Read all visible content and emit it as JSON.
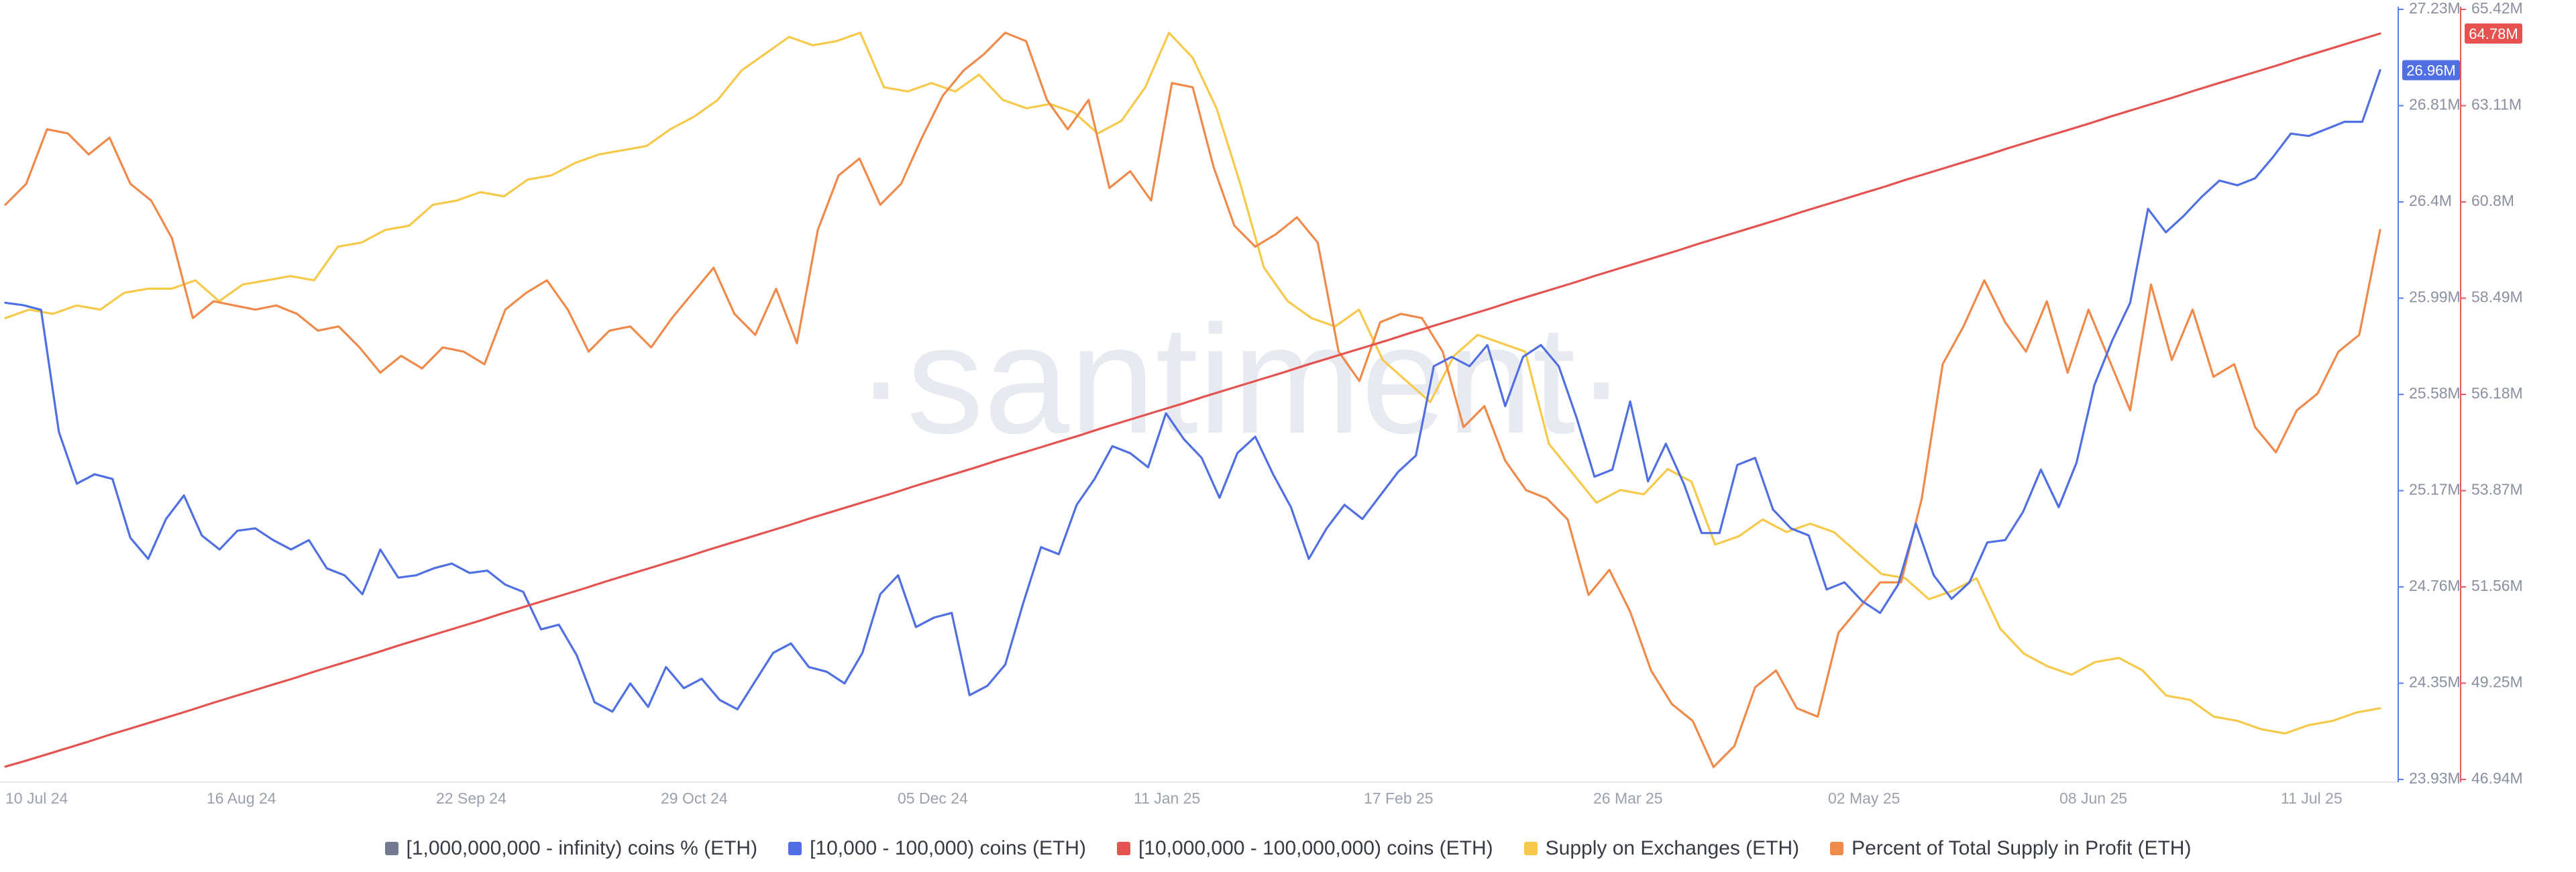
{
  "watermark": "·santiment·",
  "chart_data": {
    "type": "line",
    "x_ticks": [
      "10 Jul 24",
      "16 Aug 24",
      "22 Sep 24",
      "29 Oct 24",
      "05 Dec 24",
      "11 Jan 25",
      "17 Feb 25",
      "26 Mar 25",
      "02 May 25",
      "08 Jun 25",
      "11 Jul 25"
    ],
    "axes": {
      "left": {
        "ticks": [
          "27.23M",
          "26.81M",
          "26.4M",
          "25.99M",
          "25.58M",
          "25.17M",
          "24.76M",
          "24.35M",
          "23.93M"
        ],
        "range": [
          23.93,
          27.23
        ],
        "color": "#5b7fe6",
        "current_label": "26.96M",
        "current_value": 26.96,
        "current_label_color": "#4f6fe3"
      },
      "right": {
        "ticks": [
          "65.42M",
          "63.11M",
          "60.8M",
          "58.49M",
          "56.18M",
          "53.87M",
          "51.56M",
          "49.25M",
          "46.94M"
        ],
        "range": [
          46.94,
          65.42
        ],
        "color": "#e45a57",
        "current_label": "64.78M",
        "current_value": 64.78,
        "current_label_color": "#e5524f"
      }
    },
    "series": [
      {
        "name": "[1,000,000,000 - infinity) coins % (ETH)",
        "color": "#737a92",
        "axis": "none",
        "values": []
      },
      {
        "name": "[10,000 - 100,000) coins (ETH)",
        "color": "#4f6fe3",
        "axis": "left",
        "values": [
          25.97,
          25.96,
          25.94,
          25.42,
          25.2,
          25.24,
          25.22,
          24.97,
          24.88,
          25.05,
          25.15,
          24.98,
          24.92,
          25.0,
          25.01,
          24.96,
          24.92,
          24.96,
          24.84,
          24.81,
          24.73,
          24.92,
          24.8,
          24.81,
          24.84,
          24.86,
          24.82,
          24.83,
          24.77,
          24.74,
          24.58,
          24.6,
          24.47,
          24.27,
          24.23,
          24.35,
          24.25,
          24.42,
          24.33,
          24.37,
          24.28,
          24.24,
          24.36,
          24.48,
          24.52,
          24.42,
          24.4,
          24.35,
          24.48,
          24.73,
          24.81,
          24.59,
          24.63,
          24.65,
          24.3,
          24.34,
          24.43,
          24.69,
          24.93,
          24.9,
          25.11,
          25.22,
          25.36,
          25.33,
          25.27,
          25.5,
          25.39,
          25.31,
          25.14,
          25.33,
          25.4,
          25.24,
          25.1,
          24.88,
          25.01,
          25.11,
          25.05,
          25.15,
          25.25,
          25.32,
          25.7,
          25.74,
          25.7,
          25.79,
          25.53,
          25.74,
          25.79,
          25.7,
          25.48,
          25.23,
          25.26,
          25.55,
          25.21,
          25.37,
          25.2,
          24.99,
          24.99,
          25.28,
          25.31,
          25.09,
          25.01,
          24.98,
          24.75,
          24.78,
          24.7,
          24.65,
          24.77,
          25.03,
          24.81,
          24.71,
          24.78,
          24.95,
          24.96,
          25.08,
          25.26,
          25.1,
          25.29,
          25.62,
          25.81,
          25.97,
          26.37,
          26.27,
          26.34,
          26.42,
          26.49,
          26.47,
          26.5,
          26.59,
          26.69,
          26.68,
          26.71,
          26.74,
          26.74,
          26.96
        ]
      },
      {
        "name": "[10,000,000 - 100,000,000) coins (ETH)",
        "color": "#e5524f",
        "axis": "right",
        "values": [
          47.31,
          47.45,
          47.6,
          47.75,
          47.9,
          48.06,
          48.21,
          48.36,
          48.51,
          48.66,
          48.82,
          48.97,
          49.12,
          49.27,
          49.42,
          49.58,
          49.73,
          49.88,
          50.03,
          50.19,
          50.34,
          50.49,
          50.64,
          50.79,
          50.95,
          51.1,
          51.25,
          51.4,
          51.55,
          51.71,
          51.86,
          52.01,
          52.16,
          52.31,
          52.47,
          52.62,
          52.77,
          52.92,
          53.07,
          53.23,
          53.38,
          53.53,
          53.68,
          53.83,
          53.99,
          54.14,
          54.29,
          54.44,
          54.6,
          54.75,
          54.9,
          55.05,
          55.2,
          55.36,
          55.51,
          55.66,
          55.81,
          55.96,
          56.12,
          56.27,
          56.42,
          56.57,
          56.72,
          56.88,
          57.03,
          57.18,
          57.33,
          57.48,
          57.64,
          57.79,
          57.94,
          58.09,
          58.24,
          58.4,
          58.55,
          58.7,
          58.85,
          59.01,
          59.16,
          59.31,
          59.46,
          59.61,
          59.77,
          59.92,
          60.07,
          60.22,
          60.37,
          60.53,
          60.68,
          60.83,
          60.98,
          61.13,
          61.29,
          61.44,
          61.59,
          61.74,
          61.89,
          62.05,
          62.2,
          62.35,
          62.5,
          62.65,
          62.81,
          62.96,
          63.11,
          63.26,
          63.42,
          63.57,
          63.72,
          63.87,
          64.02,
          64.18,
          64.33,
          64.48,
          64.63,
          64.78
        ]
      },
      {
        "name": "Supply on Exchanges (ETH)",
        "color": "#f6c94a",
        "axis": "none",
        "values": [
          58.0,
          58.2,
          58.1,
          58.3,
          58.2,
          58.6,
          58.7,
          58.7,
          58.9,
          58.4,
          58.8,
          58.9,
          59.0,
          58.9,
          59.7,
          59.8,
          60.1,
          60.2,
          60.7,
          60.8,
          61.0,
          60.9,
          61.3,
          61.4,
          61.7,
          61.9,
          62.0,
          62.1,
          62.5,
          62.8,
          63.2,
          63.9,
          64.3,
          64.7,
          64.5,
          64.6,
          64.8,
          63.5,
          63.4,
          63.6,
          63.4,
          63.8,
          63.2,
          63.0,
          63.1,
          62.9,
          62.4,
          62.7,
          63.5,
          64.8,
          64.2,
          63.0,
          61.2,
          59.2,
          58.4,
          58.0,
          57.8,
          58.2,
          57.0,
          56.5,
          56.0,
          57.1,
          57.6,
          57.4,
          57.2,
          55.0,
          54.3,
          53.6,
          53.9,
          53.8,
          54.4,
          54.1,
          52.6,
          52.8,
          53.2,
          52.9,
          53.1,
          52.9,
          52.4,
          51.9,
          51.8,
          51.3,
          51.5,
          51.8,
          50.6,
          50.0,
          49.7,
          49.5,
          49.8,
          49.9,
          49.6,
          49.0,
          48.9,
          48.5,
          48.4,
          48.2,
          48.1,
          48.3,
          48.4,
          48.6,
          48.7
        ]
      },
      {
        "name": "Percent of Total Supply in Profit (ETH)",
        "color": "#f08a4b",
        "axis": "none",
        "values": [
          60.7,
          61.2,
          62.5,
          62.4,
          61.9,
          62.3,
          61.2,
          60.8,
          59.9,
          58.0,
          58.4,
          58.3,
          58.2,
          58.3,
          58.1,
          57.7,
          57.8,
          57.3,
          56.7,
          57.1,
          56.8,
          57.3,
          57.2,
          56.9,
          58.2,
          58.6,
          58.9,
          58.2,
          57.2,
          57.7,
          57.8,
          57.3,
          58.0,
          58.6,
          59.2,
          58.1,
          57.6,
          58.7,
          57.4,
          60.1,
          61.4,
          61.8,
          60.7,
          61.2,
          62.3,
          63.3,
          63.9,
          64.3,
          64.8,
          64.6,
          63.2,
          62.5,
          63.2,
          61.1,
          61.5,
          60.8,
          63.6,
          63.5,
          61.6,
          60.2,
          59.7,
          60.0,
          60.4,
          59.8,
          57.2,
          56.5,
          57.9,
          58.1,
          58.0,
          57.2,
          55.4,
          55.9,
          54.6,
          53.9,
          53.7,
          53.2,
          51.4,
          52.0,
          51.0,
          49.6,
          48.8,
          48.4,
          47.3,
          47.8,
          49.2,
          49.6,
          48.7,
          48.5,
          50.5,
          51.1,
          51.7,
          51.7,
          53.7,
          56.9,
          57.8,
          58.9,
          57.9,
          57.2,
          58.4,
          56.7,
          58.2,
          57.0,
          55.8,
          58.8,
          57.0,
          58.2,
          56.6,
          56.9,
          55.4,
          54.8,
          55.8,
          56.2,
          57.2,
          57.6,
          60.1
        ]
      }
    ],
    "grid": false,
    "legend_position": "bottom"
  }
}
